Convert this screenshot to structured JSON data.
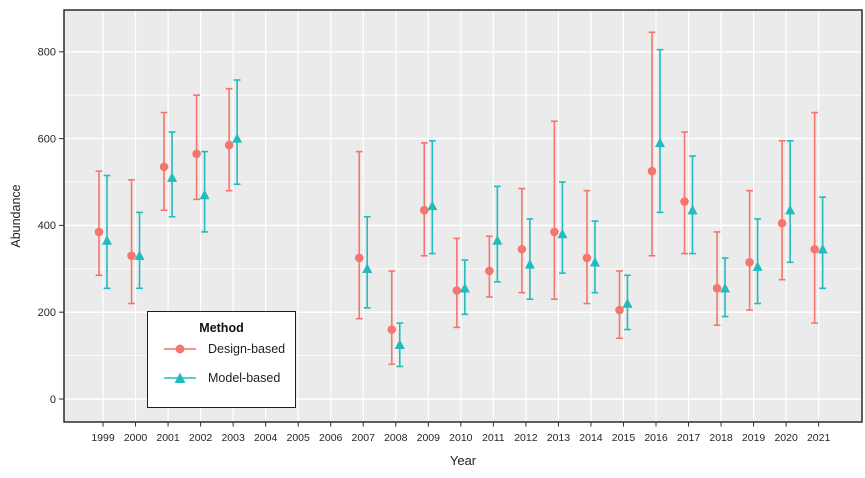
{
  "figure": {
    "x_title": "Year",
    "y_title": "Abundance"
  },
  "legend": {
    "title": "Method",
    "items": [
      {
        "label": "Design-based",
        "marker": "circle",
        "color": "#F4766E"
      },
      {
        "label": "Model-based",
        "marker": "triangle",
        "color": "#22BCBE"
      }
    ]
  },
  "colors": {
    "design_based": "#F4766E",
    "model_based": "#22BCBE",
    "panel_background": "#EBEBEB",
    "gridline": "#FFFFFF",
    "panel_border": "#2B2B2B",
    "axis_text": "#2E2E2E"
  },
  "chart_data": {
    "type": "scatter",
    "subtype": "point-estimates-with-error-bars",
    "title": "",
    "xlabel": "Year",
    "ylabel": "Abundance",
    "x_categories": [
      1999,
      2000,
      2001,
      2002,
      2003,
      2004,
      2005,
      2006,
      2007,
      2008,
      2009,
      2010,
      2011,
      2012,
      2013,
      2014,
      2015,
      2016,
      2017,
      2018,
      2019,
      2020,
      2021
    ],
    "years_without_data": [
      2004,
      2005,
      2006
    ],
    "yticks": [
      0,
      200,
      400,
      600,
      800
    ],
    "ylim": [
      0,
      880
    ],
    "grid": {
      "major_y_step": 200,
      "minor_y_step": 100,
      "vertical_at_each_year": true
    },
    "legend_position": "inside-bottom-left",
    "series": [
      {
        "name": "Design-based",
        "marker": "circle",
        "color": "#F4766E",
        "points": [
          {
            "year": 1999,
            "value": 385,
            "lower": 285,
            "upper": 525
          },
          {
            "year": 2000,
            "value": 330,
            "lower": 220,
            "upper": 505
          },
          {
            "year": 2001,
            "value": 535,
            "lower": 435,
            "upper": 660
          },
          {
            "year": 2002,
            "value": 565,
            "lower": 460,
            "upper": 700
          },
          {
            "year": 2003,
            "value": 585,
            "lower": 480,
            "upper": 715
          },
          {
            "year": 2007,
            "value": 325,
            "lower": 185,
            "upper": 570
          },
          {
            "year": 2008,
            "value": 160,
            "lower": 80,
            "upper": 295
          },
          {
            "year": 2009,
            "value": 435,
            "lower": 330,
            "upper": 590
          },
          {
            "year": 2010,
            "value": 250,
            "lower": 165,
            "upper": 370
          },
          {
            "year": 2011,
            "value": 295,
            "lower": 235,
            "upper": 375
          },
          {
            "year": 2012,
            "value": 345,
            "lower": 245,
            "upper": 485
          },
          {
            "year": 2013,
            "value": 385,
            "lower": 230,
            "upper": 640
          },
          {
            "year": 2014,
            "value": 325,
            "lower": 220,
            "upper": 480
          },
          {
            "year": 2015,
            "value": 205,
            "lower": 140,
            "upper": 295
          },
          {
            "year": 2016,
            "value": 525,
            "lower": 330,
            "upper": 845
          },
          {
            "year": 2017,
            "value": 455,
            "lower": 335,
            "upper": 615
          },
          {
            "year": 2018,
            "value": 255,
            "lower": 170,
            "upper": 385
          },
          {
            "year": 2019,
            "value": 315,
            "lower": 205,
            "upper": 480
          },
          {
            "year": 2020,
            "value": 405,
            "lower": 275,
            "upper": 595
          },
          {
            "year": 2021,
            "value": 345,
            "lower": 175,
            "upper": 660
          }
        ]
      },
      {
        "name": "Model-based",
        "marker": "triangle",
        "color": "#22BCBE",
        "points": [
          {
            "year": 1999,
            "value": 365,
            "lower": 255,
            "upper": 515
          },
          {
            "year": 2000,
            "value": 330,
            "lower": 255,
            "upper": 430
          },
          {
            "year": 2001,
            "value": 510,
            "lower": 420,
            "upper": 615
          },
          {
            "year": 2002,
            "value": 470,
            "lower": 385,
            "upper": 570
          },
          {
            "year": 2003,
            "value": 600,
            "lower": 495,
            "upper": 735
          },
          {
            "year": 2007,
            "value": 300,
            "lower": 210,
            "upper": 420
          },
          {
            "year": 2008,
            "value": 125,
            "lower": 75,
            "upper": 175
          },
          {
            "year": 2009,
            "value": 445,
            "lower": 335,
            "upper": 595
          },
          {
            "year": 2010,
            "value": 255,
            "lower": 195,
            "upper": 320
          },
          {
            "year": 2011,
            "value": 365,
            "lower": 270,
            "upper": 490
          },
          {
            "year": 2012,
            "value": 310,
            "lower": 230,
            "upper": 415
          },
          {
            "year": 2013,
            "value": 380,
            "lower": 290,
            "upper": 500
          },
          {
            "year": 2014,
            "value": 315,
            "lower": 245,
            "upper": 410
          },
          {
            "year": 2015,
            "value": 220,
            "lower": 160,
            "upper": 285
          },
          {
            "year": 2016,
            "value": 590,
            "lower": 430,
            "upper": 805
          },
          {
            "year": 2017,
            "value": 435,
            "lower": 335,
            "upper": 560
          },
          {
            "year": 2018,
            "value": 255,
            "lower": 190,
            "upper": 325
          },
          {
            "year": 2019,
            "value": 305,
            "lower": 220,
            "upper": 415
          },
          {
            "year": 2020,
            "value": 435,
            "lower": 315,
            "upper": 595
          },
          {
            "year": 2021,
            "value": 345,
            "lower": 255,
            "upper": 465
          }
        ]
      }
    ]
  }
}
